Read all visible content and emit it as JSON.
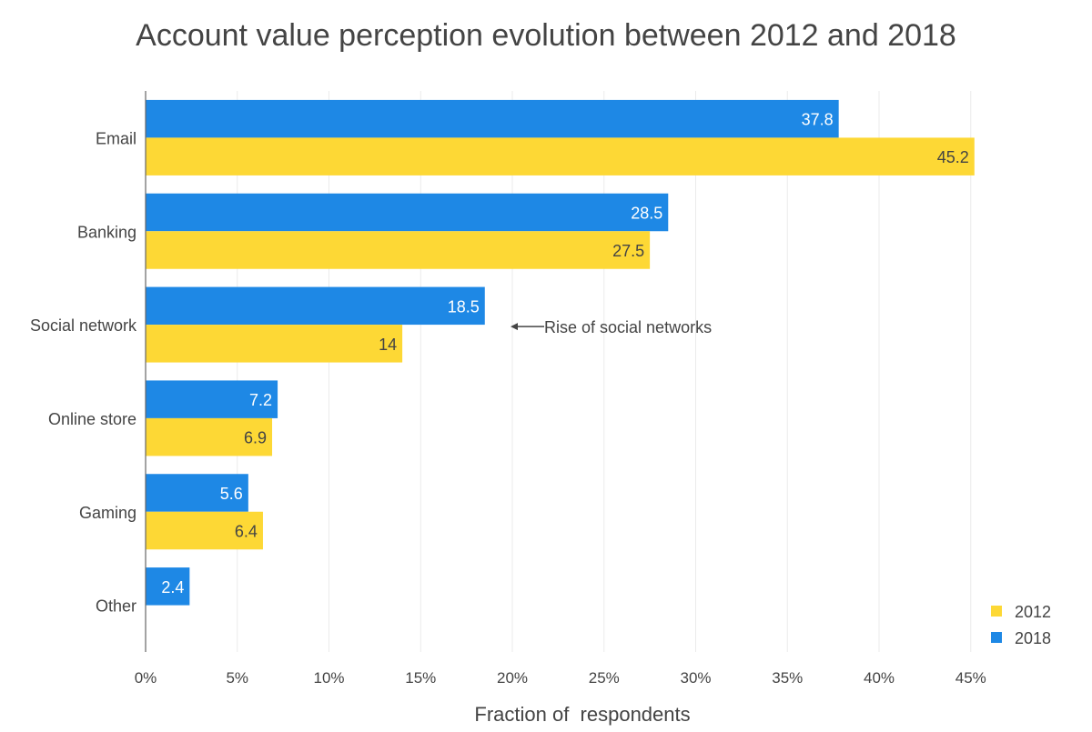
{
  "chart_data": {
    "type": "bar",
    "orientation": "horizontal",
    "title": "Account value perception evolution between 2012 and 2018",
    "xlabel": "Fraction of  respondents",
    "ylabel": "",
    "categories": [
      "Email",
      "Banking",
      "Social network",
      "Online store",
      "Gaming",
      "Other"
    ],
    "series": [
      {
        "name": "2018",
        "color": "#1E88E5",
        "values": [
          37.8,
          28.5,
          18.5,
          7.2,
          5.6,
          2.4
        ],
        "labels": [
          "37.8",
          "28.5",
          "18.5",
          "7.2",
          "5.6",
          "2.4"
        ]
      },
      {
        "name": "2012",
        "color": "#FDD835",
        "values": [
          45.2,
          27.5,
          14,
          6.9,
          6.4,
          null
        ],
        "labels": [
          "45.2",
          "27.5",
          "14",
          "6.9",
          "6.4",
          null
        ]
      }
    ],
    "xlim": [
      0,
      45
    ],
    "xticks": [
      "0%",
      "5%",
      "10%",
      "15%",
      "20%",
      "25%",
      "30%",
      "35%",
      "40%",
      "45%"
    ],
    "grid": true,
    "legend": {
      "placement": "bottom-right",
      "entries": [
        "2012",
        "2018"
      ]
    },
    "annotation": {
      "text": "Rise of social networks",
      "category": "Social network",
      "arrow": "left"
    }
  }
}
